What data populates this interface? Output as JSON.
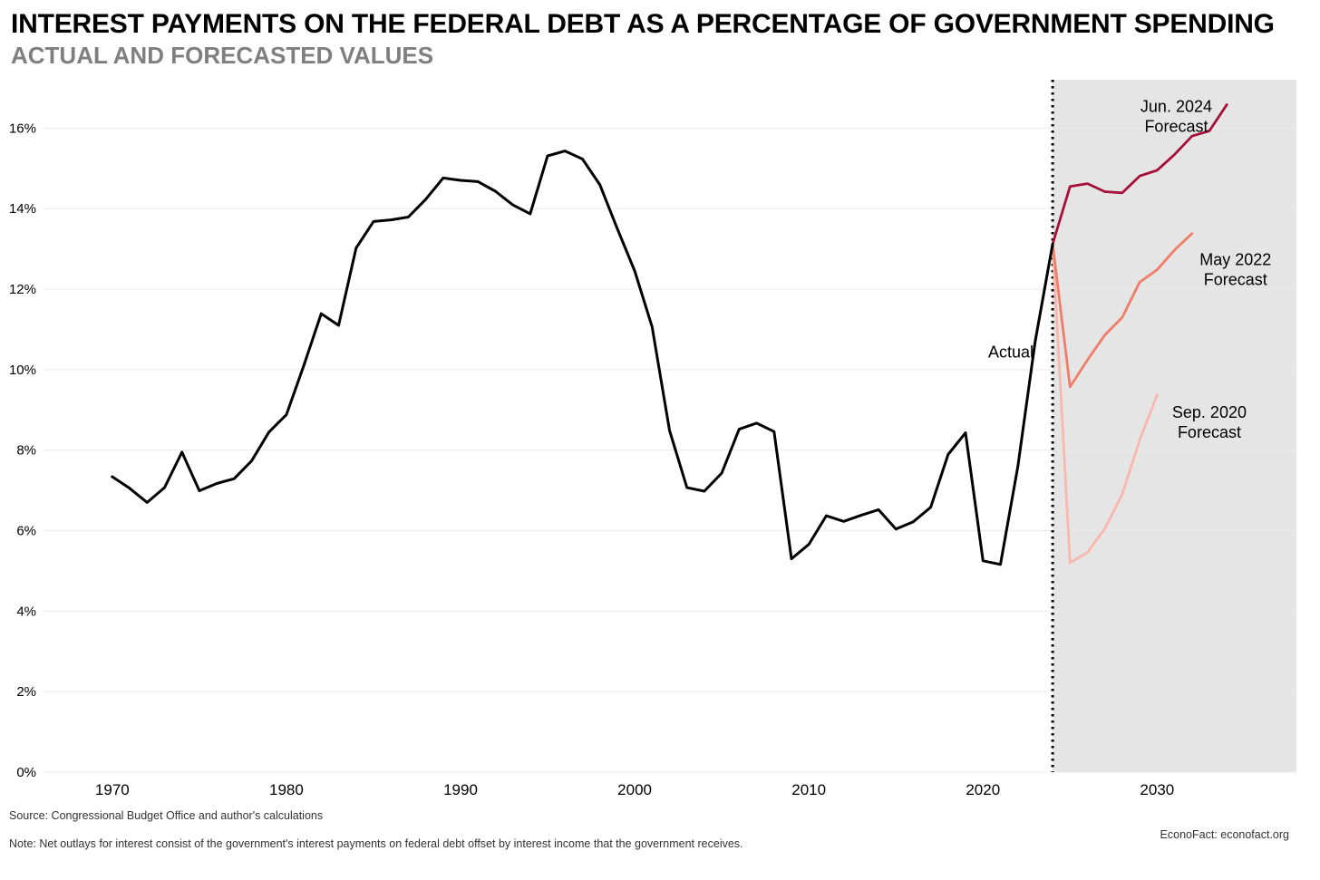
{
  "header": {
    "title": "INTEREST PAYMENTS ON THE FEDERAL DEBT AS A PERCENTAGE OF GOVERNMENT SPENDING",
    "subtitle": "ACTUAL AND FORECASTED VALUES"
  },
  "footer": {
    "source": "Source: Congressional Budget Office and author's calculations",
    "note": "Note: Net outlays for interest consist of the government's interest payments on federal debt offset by interest income that the government receives.",
    "credit": "EconoFact: econofact.org"
  },
  "colors": {
    "actual": "#000000",
    "jun2024": "#a50f3a",
    "may2022": "#ef7d68",
    "sep2020": "#f8b8ad",
    "forecast_shade": "#e5e5e5",
    "grid": "#ebebeb"
  },
  "chart_data": {
    "type": "line",
    "title": "INTEREST PAYMENTS ON THE FEDERAL DEBT AS A PERCENTAGE OF GOVERNMENT SPENDING",
    "subtitle": "ACTUAL AND FORECASTED VALUES",
    "xlabel": "",
    "ylabel": "",
    "xlim": [
      1966,
      2038
    ],
    "ylim": [
      0,
      17.2
    ],
    "x_ticks": [
      1970,
      1980,
      1990,
      2000,
      2010,
      2020,
      2030
    ],
    "y_ticks": [
      0,
      2,
      4,
      6,
      8,
      10,
      12,
      14,
      16
    ],
    "y_tick_labels": [
      "0%",
      "2%",
      "4%",
      "6%",
      "8%",
      "10%",
      "12%",
      "14%",
      "16%"
    ],
    "grid": "horizontal",
    "forecast_region_start": 2024,
    "forecast_divider": "dotted vertical line at 2024",
    "series": [
      {
        "key": "actual",
        "name": "Actual",
        "x": [
          1970,
          1971,
          1972,
          1973,
          1974,
          1975,
          1976,
          1977,
          1978,
          1979,
          1980,
          1981,
          1982,
          1983,
          1984,
          1985,
          1986,
          1987,
          1988,
          1989,
          1990,
          1991,
          1992,
          1993,
          1994,
          1995,
          1996,
          1997,
          1998,
          1999,
          2000,
          2001,
          2002,
          2003,
          2004,
          2005,
          2006,
          2007,
          2008,
          2009,
          2010,
          2011,
          2012,
          2013,
          2014,
          2015,
          2016,
          2017,
          2018,
          2019,
          2020,
          2021,
          2022,
          2023,
          2024
        ],
        "y": [
          7.34,
          7.05,
          6.7,
          7.07,
          7.95,
          6.99,
          7.17,
          7.29,
          7.73,
          8.45,
          8.88,
          10.1,
          11.39,
          11.1,
          13.02,
          13.68,
          13.72,
          13.79,
          14.23,
          14.76,
          14.7,
          14.67,
          14.43,
          14.09,
          13.87,
          15.31,
          15.43,
          15.23,
          14.59,
          13.5,
          12.45,
          11.06,
          8.49,
          7.07,
          6.98,
          7.43,
          8.52,
          8.67,
          8.46,
          5.3,
          5.66,
          6.37,
          6.23,
          6.38,
          6.52,
          6.04,
          6.22,
          6.58,
          7.89,
          8.43,
          5.25,
          5.16,
          7.59,
          10.71,
          13.12
        ]
      },
      {
        "key": "jun2024",
        "name": "Jun. 2024 Forecast",
        "label_lines": [
          "Jun. 2024",
          "Forecast"
        ],
        "x": [
          2024,
          2025,
          2026,
          2027,
          2028,
          2029,
          2030,
          2031,
          2032,
          2033,
          2034
        ],
        "y": [
          13.12,
          14.55,
          14.62,
          14.42,
          14.39,
          14.81,
          14.95,
          15.34,
          15.8,
          15.93,
          16.58
        ]
      },
      {
        "key": "may2022",
        "name": "May 2022 Forecast",
        "label_lines": [
          "May 2022",
          "Forecast"
        ],
        "x": [
          2024,
          2025,
          2026,
          2027,
          2028,
          2029,
          2030,
          2031,
          2032
        ],
        "y": [
          13.12,
          9.57,
          10.24,
          10.86,
          11.3,
          12.17,
          12.48,
          12.97,
          13.38
        ]
      },
      {
        "key": "sep2020",
        "name": "Sep. 2020 Forecast",
        "label_lines": [
          "Sep. 2020",
          "Forecast"
        ],
        "x": [
          2024,
          2025,
          2026,
          2027,
          2028,
          2029,
          2030
        ],
        "y": [
          13.12,
          5.2,
          5.46,
          6.05,
          6.91,
          8.25,
          9.37
        ]
      }
    ],
    "annotations": [
      {
        "series": "actual",
        "lines": [
          "Actual"
        ],
        "x": 2021.6,
        "y": 10.3
      },
      {
        "series": "jun2024",
        "lines": [
          "Jun. 2024",
          "Forecast"
        ],
        "x": 2031.1,
        "y": 16.4
      },
      {
        "series": "may2022",
        "lines": [
          "May 2022",
          "Forecast"
        ],
        "x": 2034.5,
        "y": 12.6
      },
      {
        "series": "sep2020",
        "lines": [
          "Sep. 2020",
          "Forecast"
        ],
        "x": 2033.0,
        "y": 8.8
      }
    ]
  }
}
